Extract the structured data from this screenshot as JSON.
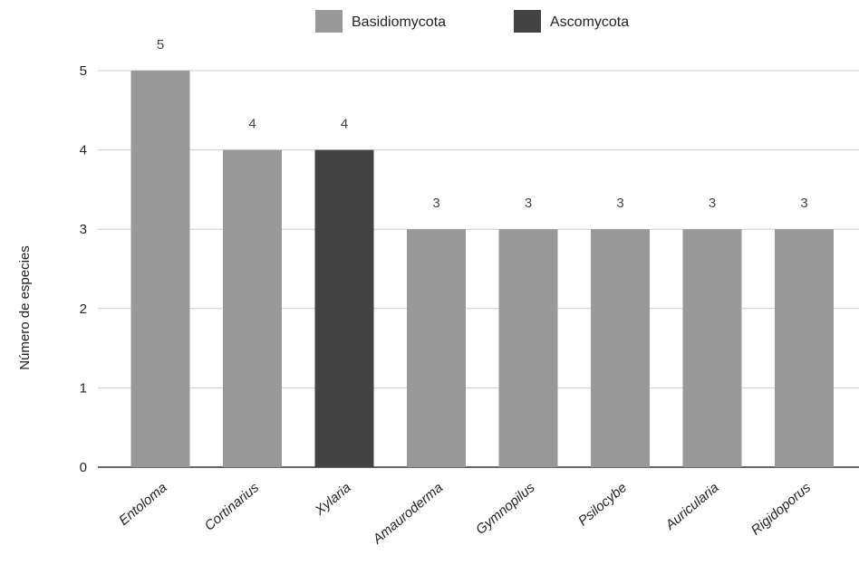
{
  "chart_data": {
    "type": "bar",
    "title": "",
    "xlabel": "",
    "ylabel": "Número de especies",
    "ylim": [
      0,
      5
    ],
    "yticks": [
      0,
      1,
      2,
      3,
      4,
      5
    ],
    "grid": true,
    "legend_position": "top",
    "categories": [
      "Entoloma",
      "Cortinarius",
      "Xylaria",
      "Amauroderma",
      "Gymnopilus",
      "Psilocybe",
      "Auricularia",
      "Rigidoporus"
    ],
    "values": [
      5,
      4,
      4,
      3,
      3,
      3,
      3,
      3
    ],
    "groups": [
      "Basidiomycota",
      "Basidiomycota",
      "Ascomycota",
      "Basidiomycota",
      "Basidiomycota",
      "Basidiomycota",
      "Basidiomycota",
      "Basidiomycota"
    ],
    "series": [
      {
        "name": "Basidiomycota",
        "color": "#999999"
      },
      {
        "name": "Ascomycota",
        "color": "#434343"
      }
    ],
    "data_labels": true
  }
}
